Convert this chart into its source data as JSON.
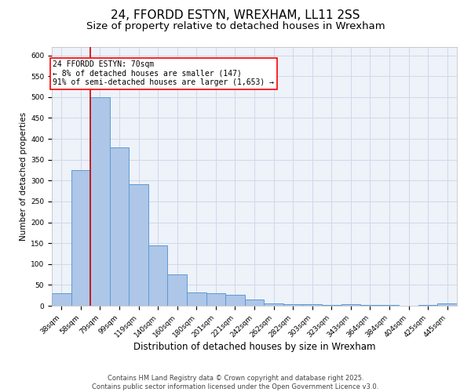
{
  "title": "24, FFORDD ESTYN, WREXHAM, LL11 2SS",
  "subtitle": "Size of property relative to detached houses in Wrexham",
  "xlabel": "Distribution of detached houses by size in Wrexham",
  "ylabel": "Number of detached properties",
  "categories": [
    "38sqm",
    "58sqm",
    "79sqm",
    "99sqm",
    "119sqm",
    "140sqm",
    "160sqm",
    "180sqm",
    "201sqm",
    "221sqm",
    "242sqm",
    "262sqm",
    "282sqm",
    "303sqm",
    "323sqm",
    "343sqm",
    "364sqm",
    "384sqm",
    "404sqm",
    "425sqm",
    "445sqm"
  ],
  "values": [
    30,
    325,
    500,
    380,
    292,
    145,
    75,
    32,
    30,
    27,
    15,
    6,
    4,
    4,
    1,
    4,
    1,
    1,
    0,
    1,
    5
  ],
  "bar_color": "#aec6e8",
  "bar_edge_color": "#5b9bd5",
  "grid_color": "#d0d8e8",
  "background_color": "#eef2f9",
  "red_line_x": 1.5,
  "annotation_text": "24 FFORDD ESTYN: 70sqm\n← 8% of detached houses are smaller (147)\n91% of semi-detached houses are larger (1,653) →",
  "annotation_box_color": "white",
  "annotation_border_color": "red",
  "red_line_color": "#cc0000",
  "ylim": [
    0,
    620
  ],
  "yticks": [
    0,
    50,
    100,
    150,
    200,
    250,
    300,
    350,
    400,
    450,
    500,
    550,
    600
  ],
  "footer": "Contains HM Land Registry data © Crown copyright and database right 2025.\nContains public sector information licensed under the Open Government Licence v3.0.",
  "title_fontsize": 11,
  "subtitle_fontsize": 9.5,
  "xlabel_fontsize": 8.5,
  "ylabel_fontsize": 7.5,
  "tick_fontsize": 6.5,
  "annotation_fontsize": 7,
  "footer_fontsize": 6
}
